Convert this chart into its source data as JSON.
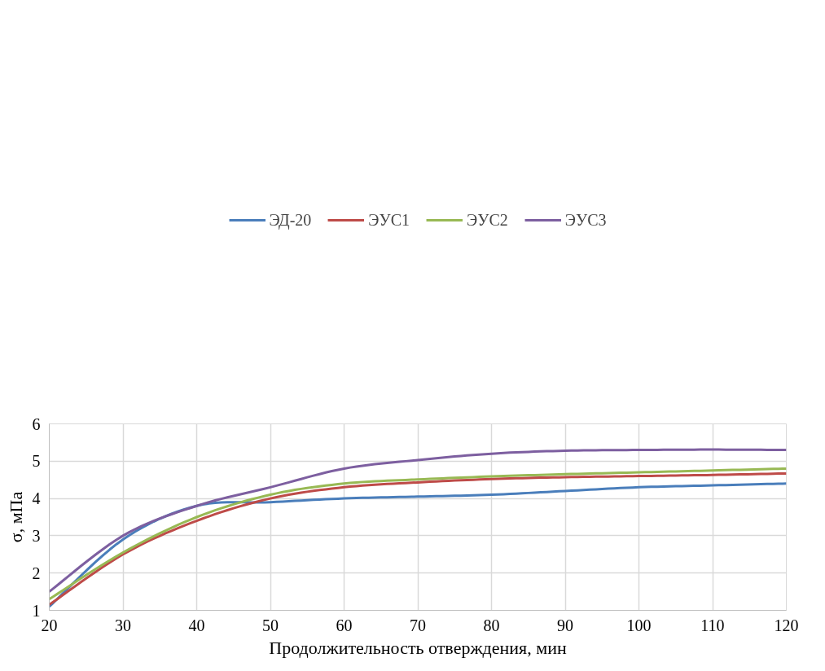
{
  "chart_data": {
    "type": "line",
    "xlabel": "Продолжительность отверждения, мин",
    "ylabel": "σ, мПа",
    "x": [
      20,
      30,
      40,
      50,
      60,
      70,
      80,
      90,
      100,
      110,
      120
    ],
    "series": [
      {
        "name": "ЭД-20",
        "color": "#4a7ebb",
        "values": [
          1.1,
          2.9,
          3.8,
          3.9,
          4.0,
          4.05,
          4.1,
          4.2,
          4.3,
          4.35,
          4.4
        ]
      },
      {
        "name": "ЭУС1",
        "color": "#be4b48",
        "values": [
          1.15,
          2.5,
          3.4,
          4.0,
          4.3,
          4.43,
          4.52,
          4.57,
          4.6,
          4.63,
          4.67
        ]
      },
      {
        "name": "ЭУС2",
        "color": "#98b954",
        "values": [
          1.3,
          2.55,
          3.5,
          4.1,
          4.4,
          4.51,
          4.59,
          4.65,
          4.7,
          4.75,
          4.8
        ]
      },
      {
        "name": "ЭУС3",
        "color": "#7d5fa0",
        "values": [
          1.5,
          3.0,
          3.8,
          4.3,
          4.8,
          5.03,
          5.2,
          5.28,
          5.3,
          5.31,
          5.3
        ]
      }
    ],
    "xlim": [
      20,
      120
    ],
    "xticks": [
      20,
      30,
      40,
      50,
      60,
      70,
      80,
      90,
      100,
      110,
      120
    ],
    "ylim": [
      1,
      6
    ],
    "yticks": [
      1,
      2,
      3,
      4,
      5,
      6
    ],
    "grid": true,
    "legend": "top",
    "marker": "none",
    "line_style": "solid"
  }
}
